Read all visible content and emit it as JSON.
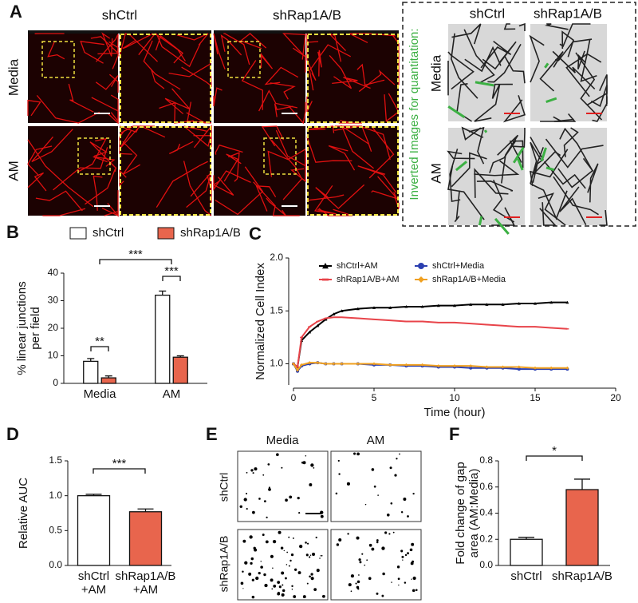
{
  "panel_a": {
    "label": "A",
    "groups": [
      "shCtrl",
      "shRap1A/B"
    ],
    "rows": [
      "Media",
      "AM"
    ],
    "inverted": {
      "title": "Inverted Images for quantitation:",
      "groups": [
        "shCtrl",
        "shRap1A/B"
      ],
      "rows": [
        "Media",
        "AM"
      ]
    }
  },
  "panel_e": {
    "label": "E",
    "columns": [
      "Media",
      "AM"
    ],
    "rows": [
      "shCtrl",
      "shRap1A/B"
    ]
  },
  "chart_data": [
    {
      "type": "bar",
      "panel": "B",
      "ylabel": [
        "% linear junctions",
        "per field"
      ],
      "categories": [
        "Media",
        "AM"
      ],
      "series": [
        {
          "name": "shCtrl",
          "color": "#ffffff",
          "values": [
            8,
            32
          ],
          "errors": [
            1,
            1.5
          ]
        },
        {
          "name": "shRap1A/B",
          "color": "#e8654d",
          "values": [
            2,
            9.5
          ],
          "errors": [
            0.7,
            0.5
          ]
        }
      ],
      "ylim": [
        0,
        40
      ],
      "yticks": [
        0,
        10,
        20,
        30,
        40
      ],
      "annotations": [
        "**",
        "***",
        "***"
      ]
    },
    {
      "type": "line",
      "panel": "C",
      "ylabel": "Normalized Cell Index",
      "xlabel": "Time (hour)",
      "x": [
        0,
        0.25,
        0.5,
        1,
        1.5,
        2,
        2.5,
        3,
        4,
        5,
        6,
        7,
        8,
        9,
        10,
        11,
        12,
        13,
        14,
        15,
        16,
        17
      ],
      "series": [
        {
          "name": "shCtrl+AM",
          "color": "#000000",
          "marker": "triangle",
          "values": [
            1.0,
            0.97,
            1.22,
            1.3,
            1.36,
            1.42,
            1.47,
            1.5,
            1.52,
            1.53,
            1.53,
            1.54,
            1.54,
            1.55,
            1.55,
            1.56,
            1.56,
            1.56,
            1.57,
            1.57,
            1.58,
            1.58
          ]
        },
        {
          "name": "shCtrl+Media",
          "color": "#2b3fb0",
          "marker": "circle",
          "values": [
            1.0,
            0.93,
            0.98,
            1.0,
            1.01,
            1.0,
            1.0,
            1.0,
            1.0,
            0.99,
            0.99,
            0.98,
            0.98,
            0.97,
            0.97,
            0.96,
            0.96,
            0.96,
            0.95,
            0.95,
            0.95,
            0.95
          ]
        },
        {
          "name": "shRap1A/B+AM",
          "color": "#e8444a",
          "marker": "bar",
          "values": [
            1.0,
            0.97,
            1.25,
            1.35,
            1.4,
            1.43,
            1.44,
            1.44,
            1.43,
            1.42,
            1.41,
            1.4,
            1.4,
            1.39,
            1.39,
            1.38,
            1.37,
            1.36,
            1.35,
            1.35,
            1.34,
            1.33
          ]
        },
        {
          "name": "shRap1A/B+Media",
          "color": "#f0a020",
          "marker": "diamond",
          "values": [
            1.0,
            0.94,
            0.99,
            1.01,
            1.01,
            1.0,
            1.0,
            1.0,
            1.0,
            1.0,
            0.99,
            0.99,
            0.99,
            0.98,
            0.98,
            0.98,
            0.97,
            0.97,
            0.97,
            0.96,
            0.96,
            0.96
          ]
        }
      ],
      "xlim": [
        0,
        20
      ],
      "xticks": [
        0,
        5,
        10,
        15,
        20
      ],
      "ylim": [
        0.8,
        2.0
      ],
      "yticks": [
        {
          "value": 1,
          "label": "1.0"
        },
        {
          "value": 1.5,
          "label": "1.5"
        },
        {
          "value": 2,
          "label": "2.0"
        }
      ]
    },
    {
      "type": "bar",
      "panel": "D",
      "ylabel": [
        "Relative AUC"
      ],
      "categories": [
        [
          "shCtrl",
          "+AM"
        ],
        [
          "shRap1A/B",
          "+AM"
        ]
      ],
      "values": [
        1.0,
        0.77
      ],
      "errors": [
        0.02,
        0.04
      ],
      "colors": [
        "#ffffff",
        "#e8654d"
      ],
      "ylim": [
        0,
        1.5
      ],
      "yticks": [
        {
          "value": 0,
          "label": "0.0"
        },
        {
          "value": 0.5,
          "label": "0.5"
        },
        {
          "value": 1,
          "label": "1.0"
        },
        1.5
      ],
      "annotations": [
        "***"
      ]
    },
    {
      "type": "bar",
      "panel": "F",
      "ylabel": [
        "Fold change of gap",
        "area (AM:Media)"
      ],
      "categories": [
        "shCtrl",
        "shRap1A/B"
      ],
      "values": [
        0.2,
        0.58
      ],
      "errors": [
        0.015,
        0.08
      ],
      "colors": [
        "#ffffff",
        "#e8654d"
      ],
      "ylim": [
        0,
        0.8
      ],
      "yticks": [
        {
          "value": 0,
          "label": "0.0"
        },
        0.2,
        0.4,
        0.6,
        0.8
      ],
      "annotations": [
        "*"
      ]
    }
  ]
}
